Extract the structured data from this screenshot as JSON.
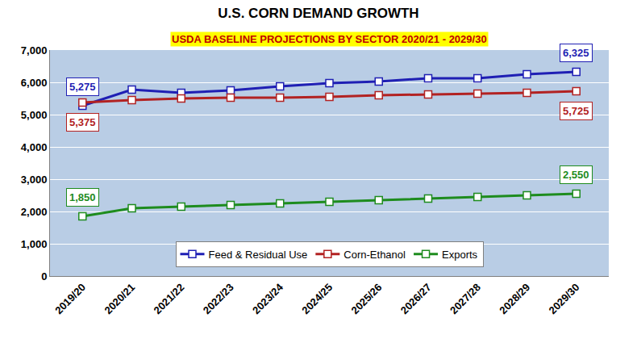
{
  "chart_data": {
    "type": "line",
    "title": "U.S. CORN DEMAND GROWTH",
    "subtitle": "USDA BASELINE PROJECTIONS BY SECTOR 2020/21 - 2029/30",
    "categories": [
      "2019/20",
      "2020/21",
      "2021/22",
      "2022/23",
      "2023/24",
      "2024/25",
      "2025/26",
      "2026/27",
      "2027/28",
      "2028/29",
      "2029/30"
    ],
    "series": [
      {
        "name": "Feed & Residual Use",
        "color": "#1f1fb4",
        "marker": "square",
        "values": [
          5275,
          5775,
          5675,
          5750,
          5875,
          5975,
          6025,
          6125,
          6125,
          6250,
          6325
        ],
        "value_labels": [
          "5,275",
          null,
          null,
          null,
          null,
          null,
          null,
          null,
          null,
          null,
          "6,325"
        ]
      },
      {
        "name": "Corn-Ethanol",
        "color": "#b22222",
        "marker": "square",
        "values": [
          5375,
          5450,
          5500,
          5525,
          5525,
          5550,
          5600,
          5625,
          5650,
          5675,
          5725
        ],
        "value_labels": [
          "5,375",
          null,
          null,
          null,
          null,
          null,
          null,
          null,
          null,
          null,
          "5,725"
        ]
      },
      {
        "name": "Exports",
        "color": "#1e8c1e",
        "marker": "square",
        "values": [
          1850,
          2100,
          2150,
          2200,
          2250,
          2300,
          2350,
          2400,
          2450,
          2500,
          2550
        ],
        "value_labels": [
          "1,850",
          null,
          null,
          null,
          null,
          null,
          null,
          null,
          null,
          null,
          "2,550"
        ]
      }
    ],
    "ylim": [
      0,
      7000
    ],
    "yticks": [
      0,
      {
        "value": 1000,
        "label": "1,000"
      },
      {
        "value": 2000,
        "label": "2,000"
      },
      {
        "value": 3000,
        "label": "3,000"
      },
      {
        "value": 4000,
        "label": "4,000"
      },
      {
        "value": 5000,
        "label": "5,000"
      },
      {
        "value": 6000,
        "label": "6,000"
      },
      {
        "value": 7000,
        "label": "7,000"
      }
    ],
    "grid": true,
    "legend": "bottom",
    "data_labels": true
  }
}
